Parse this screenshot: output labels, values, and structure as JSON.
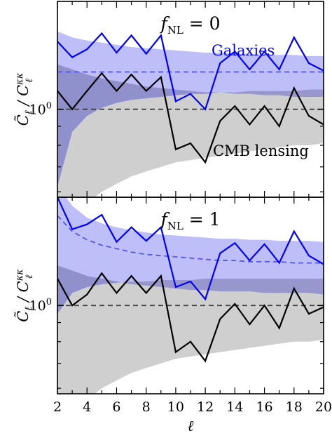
{
  "chart_data": [
    {
      "type": "line",
      "panel": "top",
      "title_main": "f",
      "title_sub": "NL",
      "title_rest": " = 0",
      "ylabel_main": "C̃",
      "ylabel_sub": "ℓ",
      "ylabel_rest": " / C",
      "ylabel_sup": "κκ",
      "ylabel_sub2": "ℓ",
      "y_tick_label": "10",
      "y_tick_label_sup": "0",
      "y_scale": "log",
      "ylim": [
        0.58,
        1.95
      ],
      "xlim": [
        2,
        20
      ],
      "annotations": [
        "Galaxies",
        "CMB lensing"
      ],
      "colors": {
        "galaxies": "#0000ff",
        "galaxies_band": "#b3b3f8",
        "cmb": "#000000",
        "cmb_band": "#cfcfcf",
        "overlap_band": "#8c8cc8",
        "expected_dash_gal": "#5555ee",
        "expected_dash_cmb": "#444444"
      },
      "x": [
        2,
        3,
        4,
        5,
        6,
        7,
        8,
        9,
        10,
        11,
        12,
        13,
        14,
        15,
        16,
        17,
        18,
        19,
        20
      ],
      "series": [
        {
          "name": "Galaxies",
          "values": [
            1.52,
            1.38,
            1.45,
            1.6,
            1.42,
            1.58,
            1.41,
            1.58,
            1.05,
            1.1,
            1.0,
            1.33,
            1.43,
            1.28,
            1.43,
            1.28,
            1.56,
            1.33,
            1.27
          ]
        },
        {
          "name": "CMB lensing",
          "values": [
            1.12,
            1.0,
            1.12,
            1.25,
            1.12,
            1.24,
            1.12,
            1.22,
            0.78,
            0.81,
            0.72,
            0.93,
            1.02,
            0.91,
            1.02,
            0.9,
            1.14,
            0.96,
            0.91
          ]
        }
      ],
      "expected": {
        "galaxies": 1.26,
        "cmb": 1.0
      },
      "bands": {
        "galaxies": {
          "lower": [
            0.62,
            0.87,
            0.96,
            1.01,
            1.04,
            1.06,
            1.07,
            1.08,
            1.09,
            1.1,
            1.1,
            1.11,
            1.11,
            1.12,
            1.12,
            1.12,
            1.12,
            1.13,
            1.13
          ],
          "upper": [
            1.62,
            1.56,
            1.53,
            1.51,
            1.49,
            1.47,
            1.46,
            1.45,
            1.44,
            1.43,
            1.42,
            1.42,
            1.41,
            1.41,
            1.4,
            1.4,
            1.4,
            1.39,
            1.39
          ]
        },
        "cmb": {
          "lower": [
            0.5,
            0.52,
            0.56,
            0.6,
            0.63,
            0.66,
            0.68,
            0.7,
            0.72,
            0.73,
            0.74,
            0.75,
            0.76,
            0.77,
            0.78,
            0.79,
            0.8,
            0.8,
            0.81
          ],
          "upper": [
            1.32,
            1.28,
            1.24,
            1.21,
            1.19,
            1.17,
            1.15,
            1.14,
            1.13,
            1.12,
            1.11,
            1.11,
            1.1,
            1.1,
            1.09,
            1.09,
            1.08,
            1.08,
            1.08
          ]
        }
      }
    },
    {
      "type": "line",
      "panel": "bottom",
      "title_main": "f",
      "title_sub": "NL",
      "title_rest": " = 1",
      "ylabel_main": "C̃",
      "ylabel_sub": "ℓ",
      "ylabel_rest": " / C",
      "ylabel_sup": "κκ",
      "ylabel_sub2": "ℓ",
      "y_tick_label": "10",
      "y_tick_label_sup": "0",
      "y_scale": "log",
      "ylim": [
        0.58,
        1.95
      ],
      "xlim": [
        2,
        20
      ],
      "xlabel": "ℓ",
      "xticks": [
        "2",
        "4",
        "6",
        "8",
        "10",
        "12",
        "14",
        "16",
        "18",
        "20"
      ],
      "x": [
        2,
        3,
        4,
        5,
        6,
        7,
        8,
        9,
        10,
        11,
        12,
        13,
        14,
        15,
        16,
        17,
        18,
        19,
        20
      ],
      "series": [
        {
          "name": "Galaxies",
          "values": [
            1.95,
            1.6,
            1.65,
            1.75,
            1.48,
            1.62,
            1.49,
            1.62,
            1.12,
            1.16,
            1.04,
            1.38,
            1.47,
            1.32,
            1.46,
            1.3,
            1.58,
            1.36,
            1.29
          ]
        },
        {
          "name": "CMB lensing",
          "values": [
            1.18,
            1.0,
            1.07,
            1.22,
            1.08,
            1.2,
            1.08,
            1.2,
            0.75,
            0.8,
            0.71,
            0.92,
            1.01,
            0.89,
            1.0,
            0.87,
            1.11,
            0.95,
            0.99
          ]
        }
      ],
      "expected": {
        "galaxies": [
          1.74,
          1.58,
          1.5,
          1.45,
          1.42,
          1.39,
          1.37,
          1.36,
          1.35,
          1.34,
          1.33,
          1.32,
          1.32,
          1.31,
          1.31,
          1.31,
          1.3,
          1.3,
          1.3
        ],
        "cmb": 1.0
      },
      "bands": {
        "galaxies": {
          "lower": [
            0.95,
            1.08,
            1.12,
            1.14,
            1.15,
            1.16,
            1.16,
            1.17,
            1.17,
            1.17,
            1.18,
            1.18,
            1.18,
            1.18,
            1.18,
            1.18,
            1.18,
            1.18,
            1.18
          ],
          "upper": [
            2.1,
            1.85,
            1.72,
            1.66,
            1.62,
            1.59,
            1.57,
            1.55,
            1.54,
            1.53,
            1.52,
            1.51,
            1.51,
            1.5,
            1.5,
            1.49,
            1.49,
            1.49,
            1.48
          ]
        },
        "cmb": {
          "lower": [
            0.5,
            0.52,
            0.56,
            0.6,
            0.63,
            0.66,
            0.68,
            0.7,
            0.72,
            0.73,
            0.74,
            0.75,
            0.76,
            0.77,
            0.78,
            0.79,
            0.8,
            0.8,
            0.81
          ],
          "upper": [
            1.28,
            1.24,
            1.2,
            1.18,
            1.16,
            1.14,
            1.13,
            1.12,
            1.11,
            1.1,
            1.1,
            1.09,
            1.09,
            1.09,
            1.08,
            1.08,
            1.08,
            1.08,
            1.07
          ]
        }
      }
    }
  ]
}
